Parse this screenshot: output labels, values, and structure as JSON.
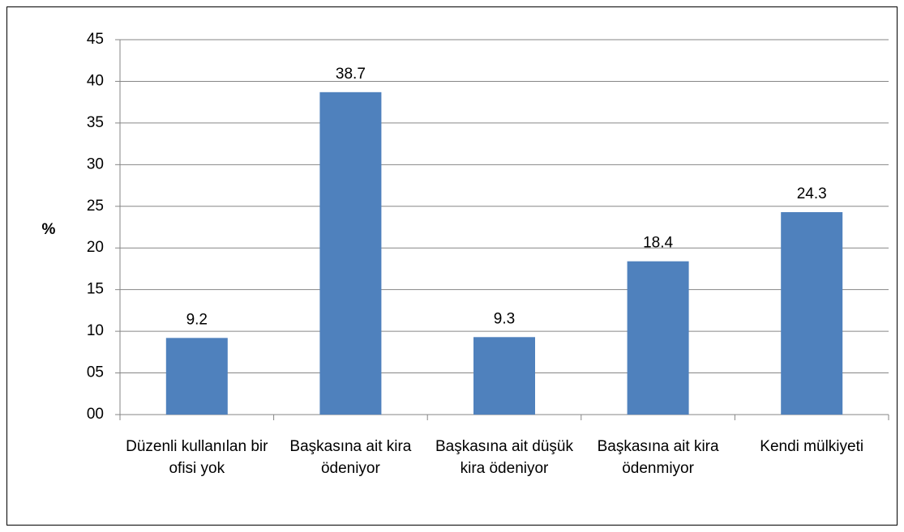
{
  "chart_data": {
    "type": "bar",
    "y_label": "%",
    "categories": [
      "Düzenli kullanılan bir ofisi yok",
      "Başkasına ait kira ödeniyor",
      "Başkasına ait düşük kira ödeniyor",
      "Başkasına ait kira ödenmiyor",
      "Kendi mülkiyeti"
    ],
    "values": [
      9.2,
      38.7,
      9.3,
      18.4,
      24.3
    ],
    "color": "#4f81bd",
    "ylim": [
      0,
      45
    ],
    "yticks": [
      {
        "value": 0,
        "label": "00"
      },
      {
        "value": 5,
        "label": "05"
      },
      10,
      15,
      20,
      25,
      30,
      35,
      40,
      45
    ],
    "grid": true
  }
}
